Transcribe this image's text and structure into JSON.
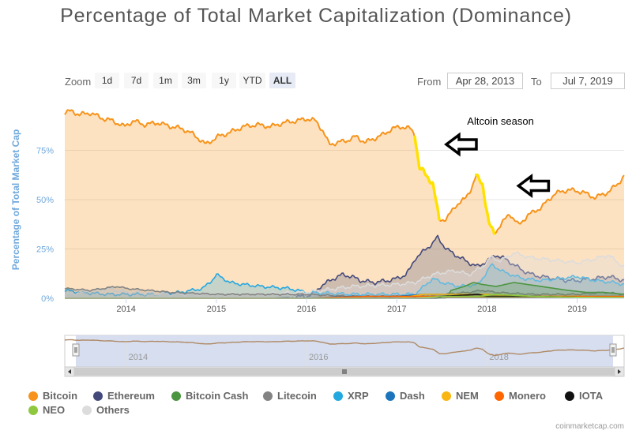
{
  "title": "Percentage of Total Market Capitalization (Dominance)",
  "zoom": {
    "label": "Zoom",
    "buttons": [
      "1d",
      "7d",
      "1m",
      "3m",
      "1y",
      "YTD",
      "ALL"
    ],
    "active": "ALL"
  },
  "range": {
    "from_label": "From",
    "from_value": "Apr 28, 2013",
    "to_label": "To",
    "to_value": "Jul 7, 2019"
  },
  "annotation": {
    "text": "Altcoin season"
  },
  "credit": "coinmarketcap.com",
  "colors": {
    "Bitcoin": "#f7931a",
    "Ethereum": "#434a7b",
    "Bitcoin Cash": "#4c9540",
    "Litecoin": "#838383",
    "XRP": "#23a8e0",
    "Dash": "#1c75bc",
    "NEM": "#f9b513",
    "Monero": "#ff6600",
    "IOTA": "#111111",
    "NEO": "#8fc73e",
    "Others": "#dcdcdc",
    "highlight": "#ffe100"
  },
  "chart_data": {
    "type": "area",
    "title": "Percentage of Total Market Capitalization (Dominance)",
    "ylabel": "Percentage of Total Market Cap",
    "xlabel": "",
    "xlim": [
      2013.32,
      2019.52
    ],
    "ylim": [
      0,
      100
    ],
    "x_ticks": [
      "2014",
      "2015",
      "2016",
      "2017",
      "2018",
      "2019"
    ],
    "x_tick_values": [
      2014,
      2015,
      2016,
      2017,
      2018,
      2019
    ],
    "y_ticks": [
      "0%",
      "25%",
      "50%",
      "75%"
    ],
    "y_tick_values": [
      0,
      25,
      50,
      75
    ],
    "legend": [
      "Bitcoin",
      "Ethereum",
      "Bitcoin Cash",
      "Litecoin",
      "XRP",
      "Dash",
      "NEM",
      "Monero",
      "IOTA",
      "NEO",
      "Others"
    ],
    "series": [
      {
        "name": "Bitcoin",
        "x": [
          2013.32,
          2013.4,
          2013.48,
          2013.6,
          2013.75,
          2013.85,
          2013.98,
          2014.08,
          2014.2,
          2014.35,
          2014.5,
          2014.62,
          2014.75,
          2014.88,
          2014.95,
          2015.02,
          2015.15,
          2015.3,
          2015.45,
          2015.6,
          2015.75,
          2015.9,
          2016.0,
          2016.1,
          2016.18,
          2016.25,
          2016.35,
          2016.45,
          2016.55,
          2016.65,
          2016.75,
          2016.85,
          2016.95,
          2017.05,
          2017.15,
          2017.2,
          2017.25,
          2017.3,
          2017.4,
          2017.47,
          2017.55,
          2017.65,
          2017.75,
          2017.83,
          2017.88,
          2017.95,
          2018.02,
          2018.08,
          2018.15,
          2018.25,
          2018.35,
          2018.45,
          2018.6,
          2018.75,
          2018.9,
          2019.05,
          2019.2,
          2019.35,
          2019.45,
          2019.52
        ],
        "values": [
          94,
          95,
          93,
          94,
          91,
          90,
          87,
          90,
          88,
          89,
          87,
          86,
          83,
          78,
          80,
          82,
          84,
          87,
          88,
          87,
          89,
          90,
          91,
          90,
          85,
          78,
          79,
          80,
          82,
          79,
          81,
          83,
          86,
          87,
          86,
          83,
          66,
          64,
          58,
          40,
          40,
          47,
          50,
          56,
          62,
          58,
          38,
          33,
          37,
          43,
          37,
          42,
          46,
          53,
          55,
          54,
          51,
          54,
          58,
          62
        ]
      },
      {
        "name": "Ethereum",
        "x": [
          2013.32,
          2014.0,
          2015.0,
          2015.6,
          2016.0,
          2016.1,
          2016.15,
          2016.3,
          2016.4,
          2016.5,
          2016.6,
          2016.75,
          2016.9,
          2017.0,
          2017.1,
          2017.15,
          2017.2,
          2017.3,
          2017.4,
          2017.45,
          2017.55,
          2017.65,
          2017.8,
          2017.9,
          2018.0,
          2018.1,
          2018.2,
          2018.3,
          2018.4,
          2018.5,
          2018.6,
          2018.75,
          2018.9,
          2019.0,
          2019.2,
          2019.35,
          2019.52
        ],
        "values": [
          0,
          0,
          0,
          0,
          1,
          3,
          6,
          10,
          12,
          11,
          9,
          8,
          9,
          10,
          12,
          15,
          20,
          24,
          28,
          31,
          25,
          22,
          18,
          16,
          19,
          22,
          20,
          17,
          14,
          12,
          11,
          10,
          9,
          9,
          10,
          11,
          9
        ]
      },
      {
        "name": "XRP",
        "x": [
          2013.32,
          2013.5,
          2013.8,
          2014.0,
          2014.3,
          2014.6,
          2014.85,
          2014.95,
          2015.0,
          2015.08,
          2015.15,
          2015.3,
          2015.5,
          2015.8,
          2016.0,
          2016.5,
          2017.0,
          2017.2,
          2017.3,
          2017.4,
          2017.5,
          2017.7,
          2017.9,
          2017.98,
          2018.05,
          2018.2,
          2018.4,
          2018.6,
          2018.8,
          2019.0,
          2019.2,
          2019.4,
          2019.52
        ],
        "values": [
          4,
          3,
          2,
          2,
          2,
          3,
          5,
          9,
          12,
          10,
          8,
          7,
          6,
          5,
          3,
          2,
          2,
          2,
          6,
          10,
          8,
          6,
          7,
          12,
          17,
          13,
          10,
          9,
          10,
          11,
          9,
          8,
          7
        ]
      },
      {
        "name": "Others",
        "x": [
          2013.32,
          2013.5,
          2013.8,
          2014.0,
          2014.5,
          2015.0,
          2015.5,
          2016.0,
          2016.5,
          2017.0,
          2017.2,
          2017.4,
          2017.5,
          2017.65,
          2017.8,
          2017.95,
          2018.05,
          2018.15,
          2018.3,
          2018.45,
          2018.6,
          2018.8,
          2019.0,
          2019.2,
          2019.35,
          2019.45,
          2019.52
        ],
        "values": [
          2,
          3,
          5,
          3,
          2,
          2,
          2,
          3,
          6,
          7,
          8,
          12,
          13,
          14,
          12,
          16,
          21,
          19,
          23,
          21,
          20,
          19,
          18,
          20,
          22,
          18,
          16
        ]
      },
      {
        "name": "Litecoin",
        "x": [
          2013.32,
          2013.6,
          2013.9,
          2014.0,
          2014.5,
          2015.0,
          2015.5,
          2016.0,
          2016.5,
          2017.0,
          2017.3,
          2017.5,
          2017.8,
          2017.95,
          2018.1,
          2018.5,
          2019.0,
          2019.3,
          2019.52
        ],
        "values": [
          5,
          4,
          6,
          5,
          3,
          2,
          2,
          2,
          1,
          1,
          1,
          2,
          3,
          4,
          3,
          2,
          2,
          3,
          2
        ]
      },
      {
        "name": "Bitcoin Cash",
        "x": [
          2013.32,
          2017.55,
          2017.6,
          2017.75,
          2017.85,
          2017.95,
          2018.1,
          2018.3,
          2018.6,
          2018.9,
          2019.1,
          2019.3,
          2019.52
        ],
        "values": [
          0,
          0,
          4,
          6,
          8,
          7,
          6,
          8,
          6,
          4,
          3,
          3,
          2
        ]
      },
      {
        "name": "Dash",
        "x": [
          2013.32,
          2015.0,
          2016.0,
          2016.5,
          2017.0,
          2017.3,
          2017.6,
          2018.0,
          2018.5,
          2019.0,
          2019.52
        ],
        "values": [
          0,
          0,
          0,
          1,
          1,
          2,
          2,
          2,
          1,
          1,
          1
        ]
      },
      {
        "name": "NEM",
        "x": [
          2013.32,
          2015.2,
          2016.0,
          2017.0,
          2017.3,
          2017.6,
          2018.0,
          2018.5,
          2019.0,
          2019.52
        ],
        "values": [
          0,
          0,
          0,
          0,
          2,
          2,
          2,
          1,
          1,
          0.5
        ]
      },
      {
        "name": "Monero",
        "x": [
          2013.32,
          2014.5,
          2016.0,
          2016.7,
          2017.0,
          2017.5,
          2018.0,
          2018.5,
          2019.0,
          2019.52
        ],
        "values": [
          0,
          0,
          0,
          1,
          1,
          1,
          1,
          1,
          1,
          1
        ]
      },
      {
        "name": "IOTA",
        "x": [
          2013.32,
          2017.45,
          2017.5,
          2017.9,
          2018.0,
          2018.5,
          2019.0,
          2019.52
        ],
        "values": [
          0,
          0,
          1,
          2,
          1,
          1,
          0.5,
          0.3
        ]
      },
      {
        "name": "NEO",
        "x": [
          2013.32,
          2017.2,
          2017.5,
          2017.9,
          2018.1,
          2018.5,
          2019.0,
          2019.52
        ],
        "values": [
          0,
          0,
          1,
          1,
          2,
          1,
          0.5,
          0.4
        ]
      }
    ],
    "navigator": {
      "x_ticks": [
        "2014",
        "2016",
        "2018"
      ],
      "x_tick_values": [
        2014,
        2016,
        2018
      ]
    },
    "highlight_segments": [
      [
        2017.2,
        2017.47
      ],
      [
        2017.88,
        2018.08
      ]
    ],
    "arrows": [
      {
        "x": 2017.55,
        "y": 78
      },
      {
        "x": 2018.35,
        "y": 57
      }
    ],
    "annotation": {
      "text": "Altcoin season",
      "x": 2017.78,
      "y": 88
    }
  }
}
